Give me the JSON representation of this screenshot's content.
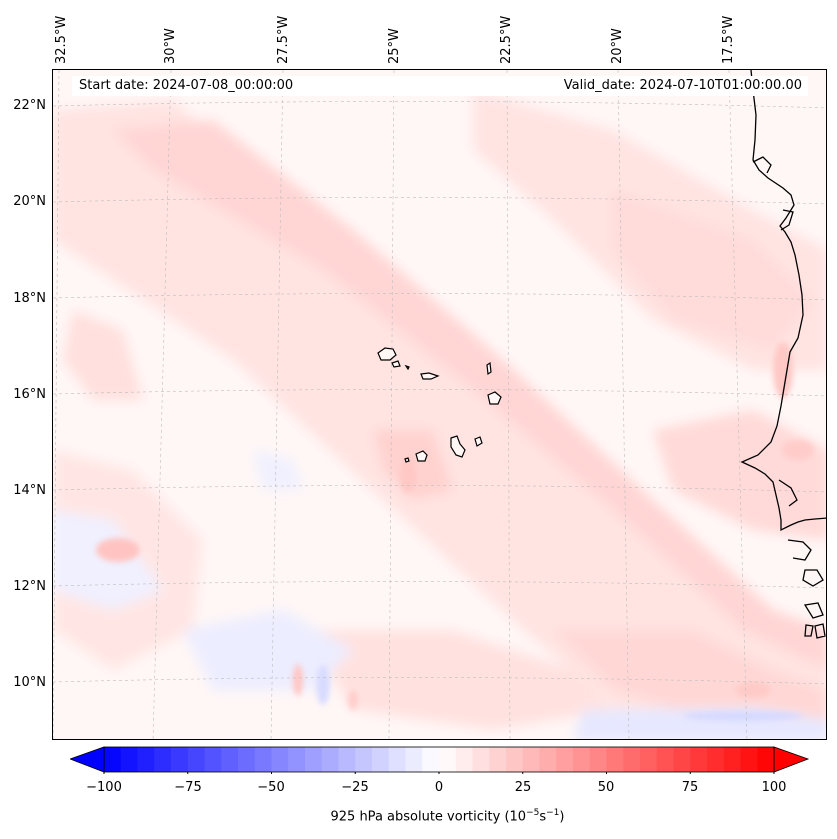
{
  "map": {
    "title_start": "Start date: 2024-07-08_00:00:00",
    "title_valid": "Valid_date: 2024-07-10T01:00:00.00",
    "lon_labels": [
      "32.5°W",
      "30°W",
      "27.5°W",
      "25°W",
      "22.5°W",
      "20°W",
      "17.5°W"
    ],
    "lat_labels": [
      "22°N",
      "20°N",
      "18°N",
      "16°N",
      "14°N",
      "12°N",
      "10°N"
    ],
    "extent": {
      "lon_min": -32.8,
      "lon_max": -15.0,
      "lat_min": 8.9,
      "lat_max": 22.7
    },
    "field": "925 hPa absolute vorticity",
    "colors": {
      "negative": "#0000ff",
      "zero": "#ffffff",
      "positive": "#ff0000",
      "coast": "#000000"
    }
  },
  "colorbar": {
    "tick_labels": [
      "−100",
      "−75",
      "−50",
      "−25",
      "0",
      "25",
      "50",
      "75",
      "100"
    ],
    "vmin": -100,
    "vmax": 100,
    "levels": 40,
    "label_main": "925 hPa absolute vorticity (10",
    "label_exp1": "−5",
    "label_mid": "s",
    "label_exp2": "−1",
    "label_end": ")"
  }
}
